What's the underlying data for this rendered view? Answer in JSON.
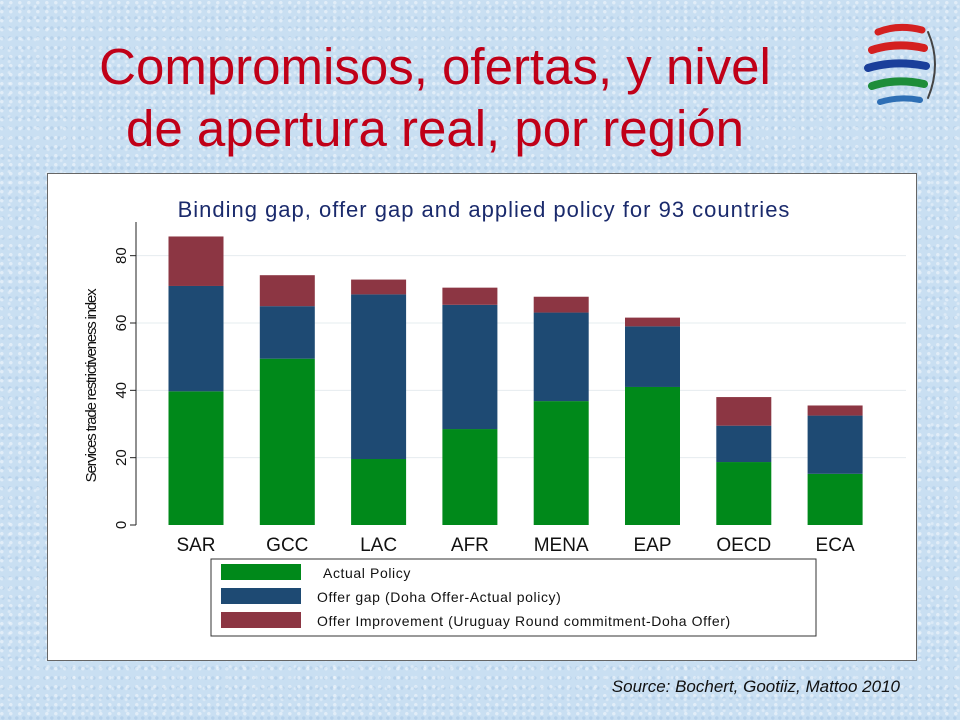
{
  "slide": {
    "title_line1": "Compromisos, ofertas, y nivel",
    "title_line2": "de apertura real, por región",
    "logo_icon": "wto-logo-icon",
    "source": "Source: Bochert, Gootiiz, Mattoo 2010"
  },
  "chart_data": {
    "type": "bar",
    "stacked": true,
    "title": "Binding gap, offer gap and applied policy for 93 countries",
    "ylabel": "Services trade restrictiveness index",
    "xlabel": "",
    "ylim": [
      0,
      90
    ],
    "yticks": [
      0,
      20,
      40,
      60,
      80
    ],
    "grid": true,
    "legend_position": "bottom",
    "categories": [
      "SAR",
      "GCC",
      "LAC",
      "AFR",
      "MENA",
      "EAP",
      "OECD",
      "ECA"
    ],
    "series": [
      {
        "name": "Actual Policy",
        "color": "#00891a",
        "values": [
          39.7,
          49.4,
          19.6,
          28.5,
          36.8,
          41.0,
          18.7,
          15.2
        ]
      },
      {
        "name": "Offer gap (Doha Offer-Actual policy)",
        "color": "#1e4a73",
        "values": [
          31.3,
          15.6,
          48.9,
          36.9,
          26.3,
          18.0,
          10.8,
          17.3
        ]
      },
      {
        "name": "Offer Improvement (Uruguay Round commitment-Doha Offer)",
        "color": "#8c3643",
        "values": [
          14.7,
          9.2,
          4.4,
          5.1,
          4.7,
          2.6,
          8.5,
          3.0
        ]
      }
    ]
  }
}
